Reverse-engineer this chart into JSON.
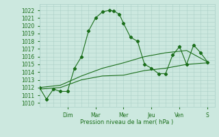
{
  "title": "",
  "xlabel": "Pression niveau de la mer( hPa )",
  "ylabel": "",
  "ylim": [
    1009.5,
    1022.8
  ],
  "yticks": [
    1010,
    1011,
    1012,
    1013,
    1014,
    1015,
    1016,
    1017,
    1018,
    1019,
    1020,
    1021,
    1022
  ],
  "bg_color": "#cce8df",
  "grid_color": "#aacfc7",
  "line_color": "#1a6e1a",
  "day_labels": [
    "Dim",
    "Mar",
    "Mer",
    "Jeu",
    "Ven",
    "S"
  ],
  "day_positions": [
    2,
    4,
    6,
    8,
    10,
    12
  ],
  "xlim": [
    0,
    12.5
  ],
  "series1": {
    "x": [
      0,
      0.5,
      1.0,
      1.5,
      2.0,
      2.5,
      3.0,
      3.5,
      4.0,
      4.5,
      5.0,
      5.3,
      5.7,
      6.0,
      6.5,
      7.0,
      7.5,
      8.0,
      8.5,
      9.0,
      9.5,
      10.0,
      10.5,
      11.0,
      11.5,
      12.0
    ],
    "y": [
      1012.0,
      1010.5,
      1011.8,
      1011.5,
      1011.5,
      1014.5,
      1016.0,
      1019.3,
      1021.0,
      1021.8,
      1022.0,
      1021.9,
      1021.5,
      1020.3,
      1018.5,
      1018.0,
      1015.0,
      1014.5,
      1013.8,
      1013.8,
      1016.2,
      1017.3,
      1015.0,
      1017.5,
      1016.5,
      1015.3
    ]
  },
  "series2": {
    "x": [
      0,
      1.5,
      3.0,
      4.5,
      6.0,
      7.5,
      9.0,
      10.5,
      12.0
    ],
    "y": [
      1011.8,
      1012.0,
      1013.0,
      1013.5,
      1013.6,
      1014.2,
      1014.5,
      1015.0,
      1015.2
    ]
  },
  "series3": {
    "x": [
      0,
      1.5,
      3.0,
      4.5,
      6.0,
      7.5,
      9.0,
      10.5,
      12.0
    ],
    "y": [
      1012.0,
      1012.3,
      1013.5,
      1014.5,
      1015.2,
      1016.0,
      1016.5,
      1016.8,
      1015.3
    ]
  }
}
